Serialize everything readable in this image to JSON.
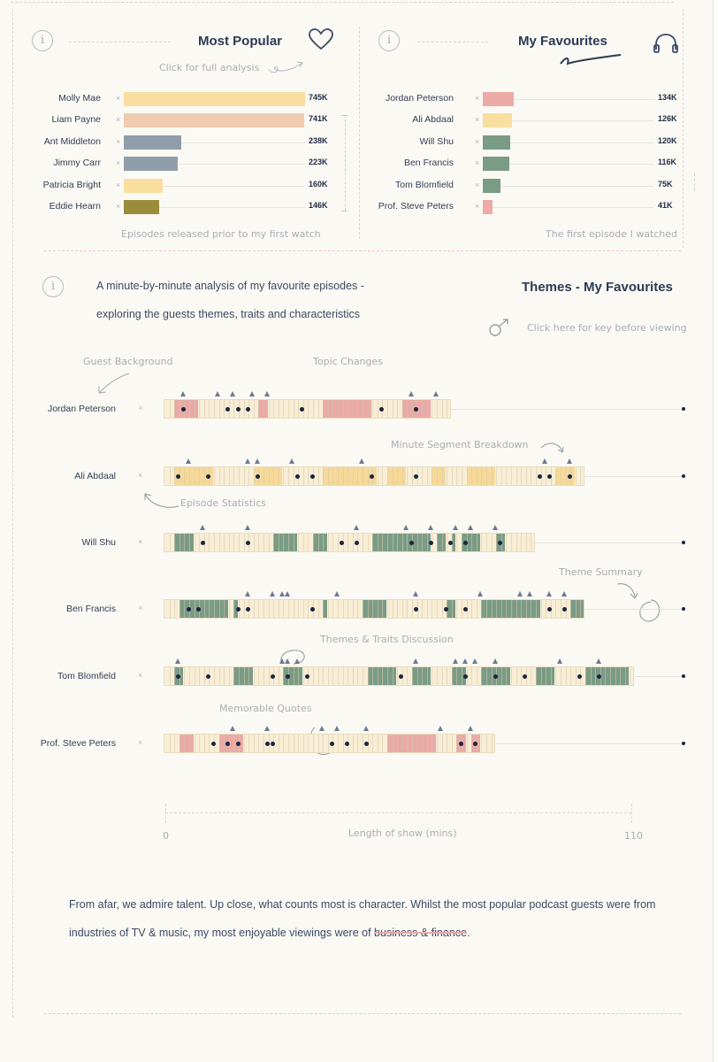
{
  "colors": {
    "accent": "#2b3b55",
    "red": "#e9a9a6",
    "yellow": "#f6dfa0",
    "green": "#7b9a86",
    "grey": "#8e9ba7",
    "olive": "#9a8a3a"
  },
  "popular": {
    "title": "Most Popular",
    "hint": "Click for full analysis",
    "footer": "Episodes released prior to my first watch",
    "icon": "heart-icon",
    "items": [
      {
        "name": "Molly Mae",
        "value": 745,
        "label": "745K",
        "color": "#f8de9f"
      },
      {
        "name": "Liam Payne",
        "value": 741,
        "label": "741K",
        "color": "#efcbb0"
      },
      {
        "name": "Ant Middleton",
        "value": 238,
        "label": "238K",
        "color": "#909ea9"
      },
      {
        "name": "Jimmy Carr",
        "value": 223,
        "label": "223K",
        "color": "#909ea9"
      },
      {
        "name": "Patricia Bright",
        "value": 160,
        "label": "160K",
        "color": "#f8de9f"
      },
      {
        "name": "Eddie Hearn",
        "value": 146,
        "label": "146K",
        "color": "#9b8c3c"
      }
    ]
  },
  "favourites": {
    "title": "My Favourites",
    "footer": "The first episode I watched",
    "icon": "headphones-icon",
    "items": [
      {
        "name": "Jordan Peterson",
        "value": 134,
        "label": "134K",
        "color": "#eeaaa6"
      },
      {
        "name": "Ali Abdaal",
        "value": 126,
        "label": "126K",
        "color": "#f8de9f"
      },
      {
        "name": "Will Shu",
        "value": 120,
        "label": "120K",
        "color": "#7a9b85"
      },
      {
        "name": "Ben Francis",
        "value": 116,
        "label": "116K",
        "color": "#7a9b85"
      },
      {
        "name": "Tom Blomfield",
        "value": 75,
        "label": "75K",
        "color": "#7a9b85"
      },
      {
        "name": "Prof. Steve Peters",
        "value": 41,
        "label": "41K",
        "color": "#eeaaa6"
      }
    ]
  },
  "themes": {
    "title": "Themes - My Favourites",
    "intro_line1": "A minute-by-minute analysis of my favourite episodes -",
    "intro_line2": "exploring the guests themes, traits and characteristics",
    "key_hint": "Click here for key before viewing",
    "annotations": {
      "guest_background": "Guest Background",
      "topic_changes": "Topic Changes",
      "minute_segment": "Minute Segment Breakdown",
      "episode_stats": "Episode Statistics",
      "theme_summary": "Theme Summary",
      "themes_traits": "Themes & Traits Discussion",
      "memorable_quotes": "Memorable Quotes"
    },
    "axis": {
      "min_label": "0",
      "max_label": "110",
      "label": "Length of show (mins)"
    }
  },
  "chart_data": {
    "type": "bar",
    "xlabel": "Length of show (mins)",
    "xlim": [
      0,
      110
    ],
    "series": [
      {
        "name": "Jordan Peterson",
        "length": 58,
        "color": "#e9a9a6",
        "segments": [
          [
            2,
            7
          ],
          [
            19,
            21
          ],
          [
            32,
            42
          ],
          [
            48,
            54
          ]
        ],
        "dots": [
          4,
          13,
          15,
          17,
          28,
          44,
          51
        ],
        "triangles": [
          4,
          11,
          14,
          18,
          21,
          50,
          55
        ]
      },
      {
        "name": "Ali Abdaal",
        "length": 85,
        "color": "#f6d999",
        "segments": [
          [
            2,
            10
          ],
          [
            18,
            24
          ],
          [
            32,
            43
          ],
          [
            45,
            49
          ],
          [
            54,
            57
          ],
          [
            61,
            67
          ],
          [
            79,
            83
          ]
        ],
        "dots": [
          3,
          9,
          19,
          27,
          30,
          42,
          51,
          76,
          78,
          82
        ],
        "triangles": [
          5,
          17,
          19,
          26,
          40,
          77,
          82
        ]
      },
      {
        "name": "Will Shu",
        "length": 75,
        "color": "#7a9b85",
        "segments": [
          [
            2,
            6
          ],
          [
            22,
            27
          ],
          [
            30,
            33
          ],
          [
            42,
            54
          ],
          [
            55,
            57
          ],
          [
            58,
            59
          ],
          [
            60,
            64
          ],
          [
            67,
            69
          ]
        ],
        "dots": [
          8,
          17,
          36,
          39,
          50,
          54,
          58,
          61,
          68
        ],
        "triangles": [
          8,
          17,
          39,
          49,
          54,
          59,
          62,
          67
        ]
      },
      {
        "name": "Ben Francis",
        "length": 85,
        "color": "#7a9b85",
        "segments": [
          [
            3,
            13
          ],
          [
            14,
            15
          ],
          [
            32,
            33
          ],
          [
            40,
            45
          ],
          [
            57,
            59
          ],
          [
            64,
            76
          ],
          [
            82,
            86
          ]
        ],
        "dots": [
          5,
          7,
          15,
          17,
          30,
          51,
          57,
          61,
          78,
          81
        ],
        "triangles": [
          17,
          22,
          24,
          25,
          35,
          51,
          64,
          72,
          74,
          78,
          81
        ]
      },
      {
        "name": "Tom Blomfield",
        "length": 95,
        "color": "#7a9b85",
        "segments": [
          [
            2,
            4
          ],
          [
            14,
            18
          ],
          [
            24,
            28
          ],
          [
            41,
            47
          ],
          [
            50,
            54
          ],
          [
            58,
            61
          ],
          [
            64,
            70
          ],
          [
            75,
            79
          ],
          [
            85,
            94
          ]
        ],
        "dots": [
          3,
          9,
          22,
          25,
          29,
          48,
          61,
          67,
          73,
          84,
          88
        ],
        "triangles": [
          3,
          24,
          25,
          27,
          51,
          59,
          61,
          63,
          67,
          80,
          88
        ]
      },
      {
        "name": "Prof. Steve Peters",
        "length": 67,
        "color": "#e9a9a6",
        "segments": [
          [
            3,
            6
          ],
          [
            11,
            16
          ],
          [
            45,
            55
          ],
          [
            59,
            61
          ],
          [
            62,
            64
          ]
        ],
        "dots": [
          10,
          13,
          15,
          21,
          22,
          34,
          37,
          41,
          60,
          63
        ],
        "triangles": [
          14,
          21,
          32,
          35,
          41,
          56,
          62
        ]
      }
    ]
  },
  "conclusion": {
    "text_part1": "From afar, we admire talent. Up close, what counts most is character. Whilst the most popular podcast guests were from industries of TV & music, my most enjoyable viewings were of ",
    "highlight": "business & finance",
    "text_part2": "."
  }
}
